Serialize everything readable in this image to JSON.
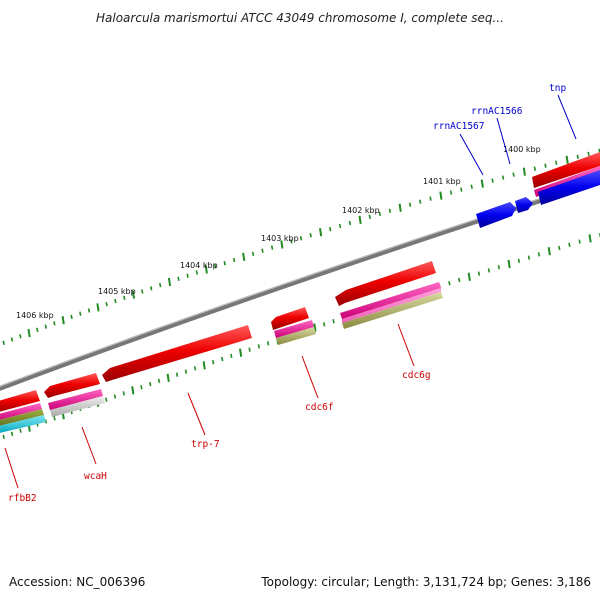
{
  "title": "Haloarcula marismortui ATCC 43049 chromosome I, complete seq...",
  "accession_text": "Accession: NC_006396",
  "summary_text": "Topology: circular; Length: 3,131,724 bp; Genes: 3,186",
  "colors": {
    "backbone": "#888888",
    "ticks": "#228b22",
    "red_label": "#cc0000",
    "blue_label": "#0000cc",
    "forward_gene": "#dd0000",
    "reverse_gene": "#0000ee",
    "magenta_track": "#ff00aa",
    "olive_track": "#99993a",
    "cyan_track": "#00bcd4",
    "grey_track": "#bbbbbb"
  },
  "scale_labels": [
    "1406 kbp",
    "1405 kbp",
    "1404 kbp",
    "1403 kbp",
    "1402 kbp",
    "1401 kbp",
    "1400 kbp"
  ],
  "gene_labels": [
    {
      "name": "rfbB2",
      "color": "red"
    },
    {
      "name": "wcaH",
      "color": "red"
    },
    {
      "name": "trp-7",
      "color": "red"
    },
    {
      "name": "cdc6f",
      "color": "red"
    },
    {
      "name": "cdc6g",
      "color": "red"
    },
    {
      "name": "rrnAC1567",
      "color": "blue"
    },
    {
      "name": "rrnAC1566",
      "color": "blue"
    },
    {
      "name": "tnp",
      "color": "blue"
    }
  ]
}
